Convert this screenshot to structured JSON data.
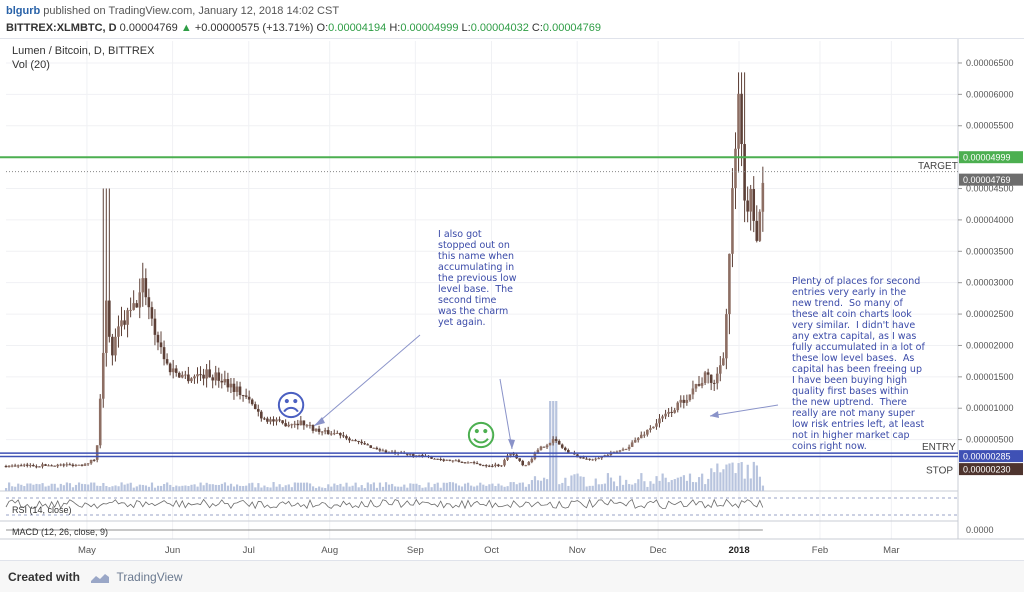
{
  "header": {
    "user": "blgurb",
    "published": " published on TradingView.com, January 12, 2018 14:02 CST",
    "symbol": "BITTREX:XLMBTC, D",
    "last": "0.00004769",
    "change": "+0.00000575 (+13.71%)",
    "o_label": "O:",
    "o": "0.00004194",
    "h_label": "H:",
    "h": "0.00004999",
    "l_label": "L:",
    "l": "0.00004032",
    "c_label": "C:",
    "c": "0.00004769"
  },
  "legend": {
    "title": "Lumen / Bitcoin, D, BITTREX",
    "volume": "Vol (20)",
    "rsi": "RSI (14, close)",
    "macd": "MACD (12, 26, close, 9)"
  },
  "annotations": {
    "stopped_out": "I also got\nstopped out on\nthis name when\naccumulating in\nthe previous low\nlevel base.  The\nsecond time\nwas the charm\nyet again.",
    "second_entries": "Plenty of places for second\nentries very early in the\nnew trend.  So many of\nthese alt coin charts look\nvery similar.  I didn't have\nany extra capital, as I was\nfully accumulated in a lot of\nthese low level bases.  As\ncapital has been freeing up\nI have been buying high\nquality first bases within\nthe new uptrend.  There\nreally are not many super\nlow risk entries left, at least\nnot in higher market cap\ncoins right now.",
    "sad_face": "☹",
    "happy_face": "☺"
  },
  "footer": {
    "created_with": "Created with",
    "brand": "TradingView"
  },
  "colors": {
    "candle": "#5d4037",
    "target_line": "#4caf50",
    "entry_line": "#3f51b5",
    "stop_line": "#3f51b5",
    "volume": "#b8c4de",
    "annotation": "#3a4aa8",
    "sad_face": "#4a5fc1",
    "happy_face": "#4caf50"
  },
  "chart_data": {
    "type": "candlestick",
    "x_tick_labels": [
      "May",
      "Jun",
      "Jul",
      "Aug",
      "Sep",
      "Oct",
      "Nov",
      "Dec",
      "2018",
      "Feb",
      "Mar"
    ],
    "y_tick_labels": [
      "0.00006500",
      "0.00006000",
      "0.00005500",
      "0.00005000",
      "0.00004500",
      "0.00004000",
      "0.00003500",
      "0.00003000",
      "0.00002500",
      "0.00002000",
      "0.00001500",
      "0.00001000",
      "0.00000500"
    ],
    "ylim": [
      0,
      6.85e-05
    ],
    "levels": [
      {
        "name": "TARGET",
        "value": 4.999e-05,
        "label": "0.00004999",
        "color": "#4caf50"
      },
      {
        "name": "ENTRY",
        "value": 2.85e-06,
        "label": "0.00000285",
        "color": "#3f51b5"
      },
      {
        "name": "STOP",
        "value": 2.3e-06,
        "label": "0.00000230",
        "color": "#3f51b5"
      }
    ],
    "last_price": {
      "value": 4.769e-05,
      "label": "0.00004769"
    },
    "macd_axis_label": "0.0000",
    "price_path": [
      [
        0,
        8e-07
      ],
      [
        0.04,
        9e-07
      ],
      [
        0.08,
        1e-06
      ],
      [
        0.095,
        2e-06
      ],
      [
        0.105,
        2.7e-05
      ],
      [
        0.11,
        1.8e-05
      ],
      [
        0.12,
        2.3e-05
      ],
      [
        0.135,
        2.6e-05
      ],
      [
        0.145,
        3e-05
      ],
      [
        0.155,
        2.3e-05
      ],
      [
        0.17,
        1.65e-05
      ],
      [
        0.19,
        1.5e-05
      ],
      [
        0.21,
        1.55e-05
      ],
      [
        0.23,
        1.45e-05
      ],
      [
        0.25,
        1.2e-05
      ],
      [
        0.27,
        8.5e-06
      ],
      [
        0.29,
        7.5e-06
      ],
      [
        0.31,
        7.8e-06
      ],
      [
        0.33,
        6.2e-06
      ],
      [
        0.35,
        6e-06
      ],
      [
        0.37,
        4.5e-06
      ],
      [
        0.4,
        3e-06
      ],
      [
        0.43,
        2.5e-06
      ],
      [
        0.46,
        1.8e-06
      ],
      [
        0.5,
        1e-06
      ],
      [
        0.52,
        9e-07
      ],
      [
        0.53,
        3e-06
      ],
      [
        0.545,
        8e-07
      ],
      [
        0.56,
        3.5e-06
      ],
      [
        0.575,
        5e-06
      ],
      [
        0.59,
        3e-06
      ],
      [
        0.61,
        1.8e-06
      ],
      [
        0.63,
        2.5e-06
      ],
      [
        0.65,
        3.5e-06
      ],
      [
        0.67,
        6e-06
      ],
      [
        0.69,
        8.5e-06
      ],
      [
        0.71,
        1.1e-05
      ],
      [
        0.72,
        1.3e-05
      ],
      [
        0.735,
        1.5e-05
      ],
      [
        0.745,
        1.4e-05
      ],
      [
        0.755,
        2e-05
      ],
      [
        0.76,
        3.5e-05
      ],
      [
        0.765,
        4.8e-05
      ],
      [
        0.77,
        5.9e-05
      ],
      [
        0.775,
        4.1e-05
      ],
      [
        0.78,
        4.4e-05
      ],
      [
        0.785,
        4.1e-05
      ],
      [
        0.79,
        3.8e-05
      ],
      [
        0.795,
        4.77e-05
      ]
    ]
  }
}
